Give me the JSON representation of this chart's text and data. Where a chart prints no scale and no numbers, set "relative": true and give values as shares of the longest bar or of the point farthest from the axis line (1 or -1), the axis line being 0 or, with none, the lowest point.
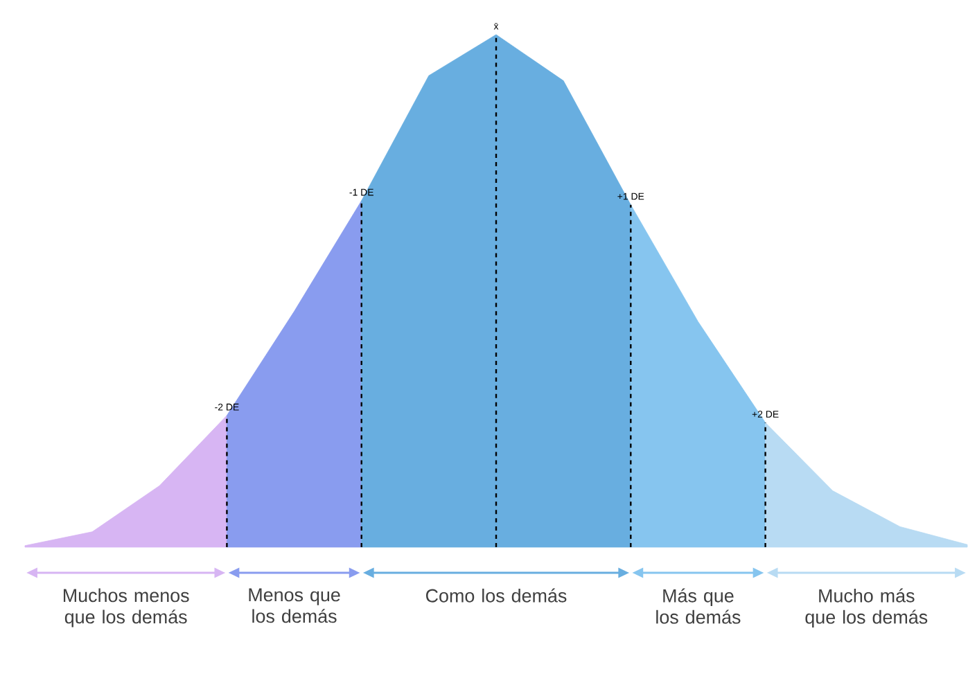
{
  "chart_data": {
    "type": "area",
    "relative": true,
    "legend": "bottom",
    "categories": [
      null,
      null,
      null,
      null,
      null,
      null,
      null,
      null,
      null,
      null,
      null,
      null,
      null,
      null,
      null
    ],
    "series": [
      {
        "name": "Muchos menos que los demás",
        "color": "#d7b5f3",
        "values": [
          0.003,
          0.03,
          0.12,
          0.257,
          null,
          null,
          null,
          null,
          null,
          null,
          null,
          null,
          null,
          null,
          null
        ]
      },
      {
        "name": "Menos que los demás",
        "color": "#899cef",
        "values": [
          null,
          null,
          null,
          0.257,
          0.46,
          0.676,
          null,
          null,
          null,
          null,
          null,
          null,
          null,
          null,
          null
        ]
      },
      {
        "name": "Como los demás",
        "color": "#68aee0",
        "values": [
          null,
          null,
          null,
          null,
          null,
          0.676,
          0.92,
          1,
          0.91,
          0.668,
          null,
          null,
          null,
          null,
          null
        ]
      },
      {
        "name": "Más que los demás",
        "color": "#86c5ef",
        "values": [
          null,
          null,
          null,
          null,
          null,
          null,
          null,
          null,
          null,
          0.668,
          0.44,
          0.243,
          null,
          null,
          null
        ]
      },
      {
        "name": "Mucho más que los demás",
        "color": "#b8dbf3",
        "values": [
          null,
          null,
          null,
          null,
          null,
          null,
          null,
          null,
          null,
          null,
          null,
          0.243,
          0.11,
          0.04,
          0.005
        ]
      }
    ],
    "annotations": [
      {
        "text": "-2 DE",
        "y": 0.257
      },
      {
        "text": "-1 DE",
        "y": 0.676
      },
      {
        "text": "x̄",
        "y": 1
      },
      {
        "text": "+1 DE",
        "y": 0.668
      },
      {
        "text": "+2 DE",
        "y": 0.243
      }
    ]
  }
}
